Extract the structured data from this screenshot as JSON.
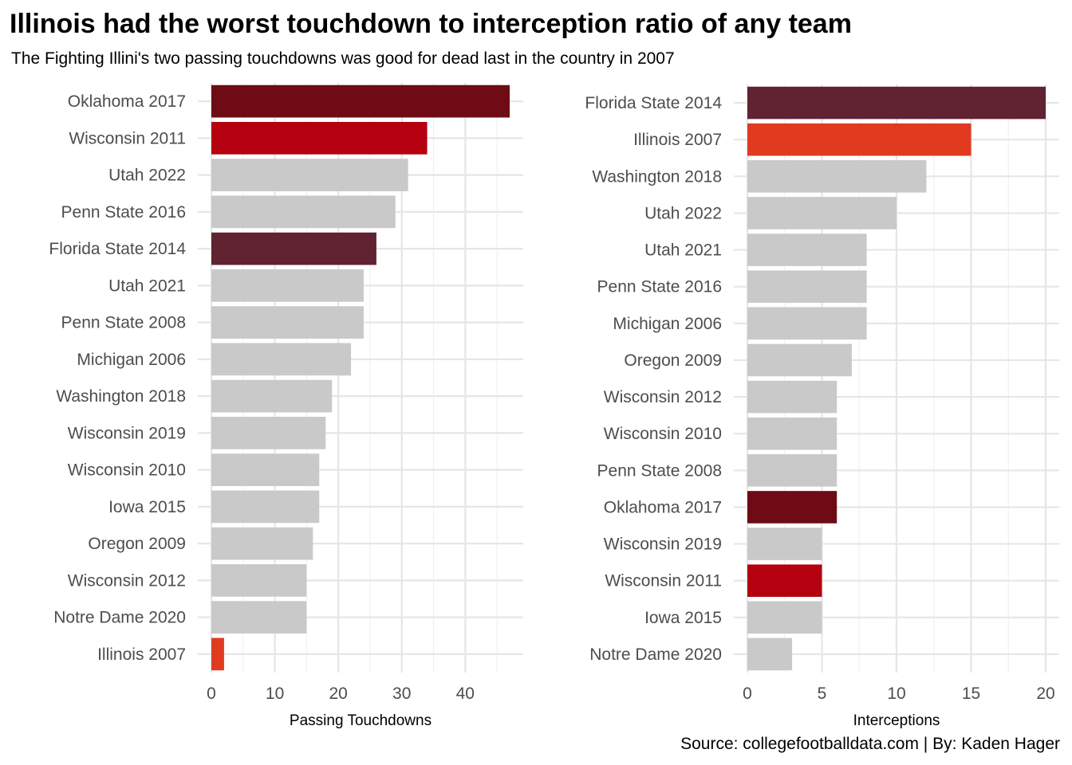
{
  "header": {
    "title": "Illinois had the worst touchdown to interception ratio of any team",
    "subtitle": "The Fighting Illini's two passing touchdowns was good for dead last in the country in 2007",
    "caption": "Source: collegefootballdata.com | By: Kaden Hager"
  },
  "colors": {
    "default": "#c9c9c9",
    "Oklahoma 2017": "#6e0b14",
    "Wisconsin 2011": "#b5000f",
    "Florida State 2014": "#612232",
    "Illinois 2007": "#e03a1f",
    "grid": "#e6e6e6"
  },
  "chart_data": [
    {
      "type": "bar",
      "orientation": "horizontal",
      "xlabel": "Passing Touchdowns",
      "xlim": [
        0,
        47
      ],
      "xticks": [
        0,
        10,
        20,
        30,
        40
      ],
      "categories": [
        "Oklahoma 2017",
        "Wisconsin 2011",
        "Utah 2022",
        "Penn State 2016",
        "Florida State 2014",
        "Utah 2021",
        "Penn State 2008",
        "Michigan 2006",
        "Washington 2018",
        "Wisconsin 2019",
        "Wisconsin 2010",
        "Iowa 2015",
        "Oregon 2009",
        "Wisconsin 2012",
        "Notre Dame 2020",
        "Illinois 2007"
      ],
      "values": [
        47,
        34,
        31,
        29,
        26,
        24,
        24,
        22,
        19,
        18,
        17,
        17,
        16,
        15,
        15,
        2
      ],
      "grid": true
    },
    {
      "type": "bar",
      "orientation": "horizontal",
      "xlabel": "Interceptions",
      "xlim": [
        0,
        20
      ],
      "xticks": [
        0,
        5,
        10,
        15,
        20
      ],
      "categories": [
        "Florida State 2014",
        "Illinois 2007",
        "Washington 2018",
        "Utah 2022",
        "Utah 2021",
        "Penn State 2016",
        "Michigan 2006",
        "Oregon 2009",
        "Wisconsin 2012",
        "Wisconsin 2010",
        "Penn State 2008",
        "Oklahoma 2017",
        "Wisconsin 2019",
        "Wisconsin 2011",
        "Iowa 2015",
        "Notre Dame 2020"
      ],
      "values": [
        20,
        15,
        12,
        10,
        8,
        8,
        8,
        7,
        6,
        6,
        6,
        6,
        5,
        5,
        5,
        3
      ],
      "grid": true
    }
  ]
}
